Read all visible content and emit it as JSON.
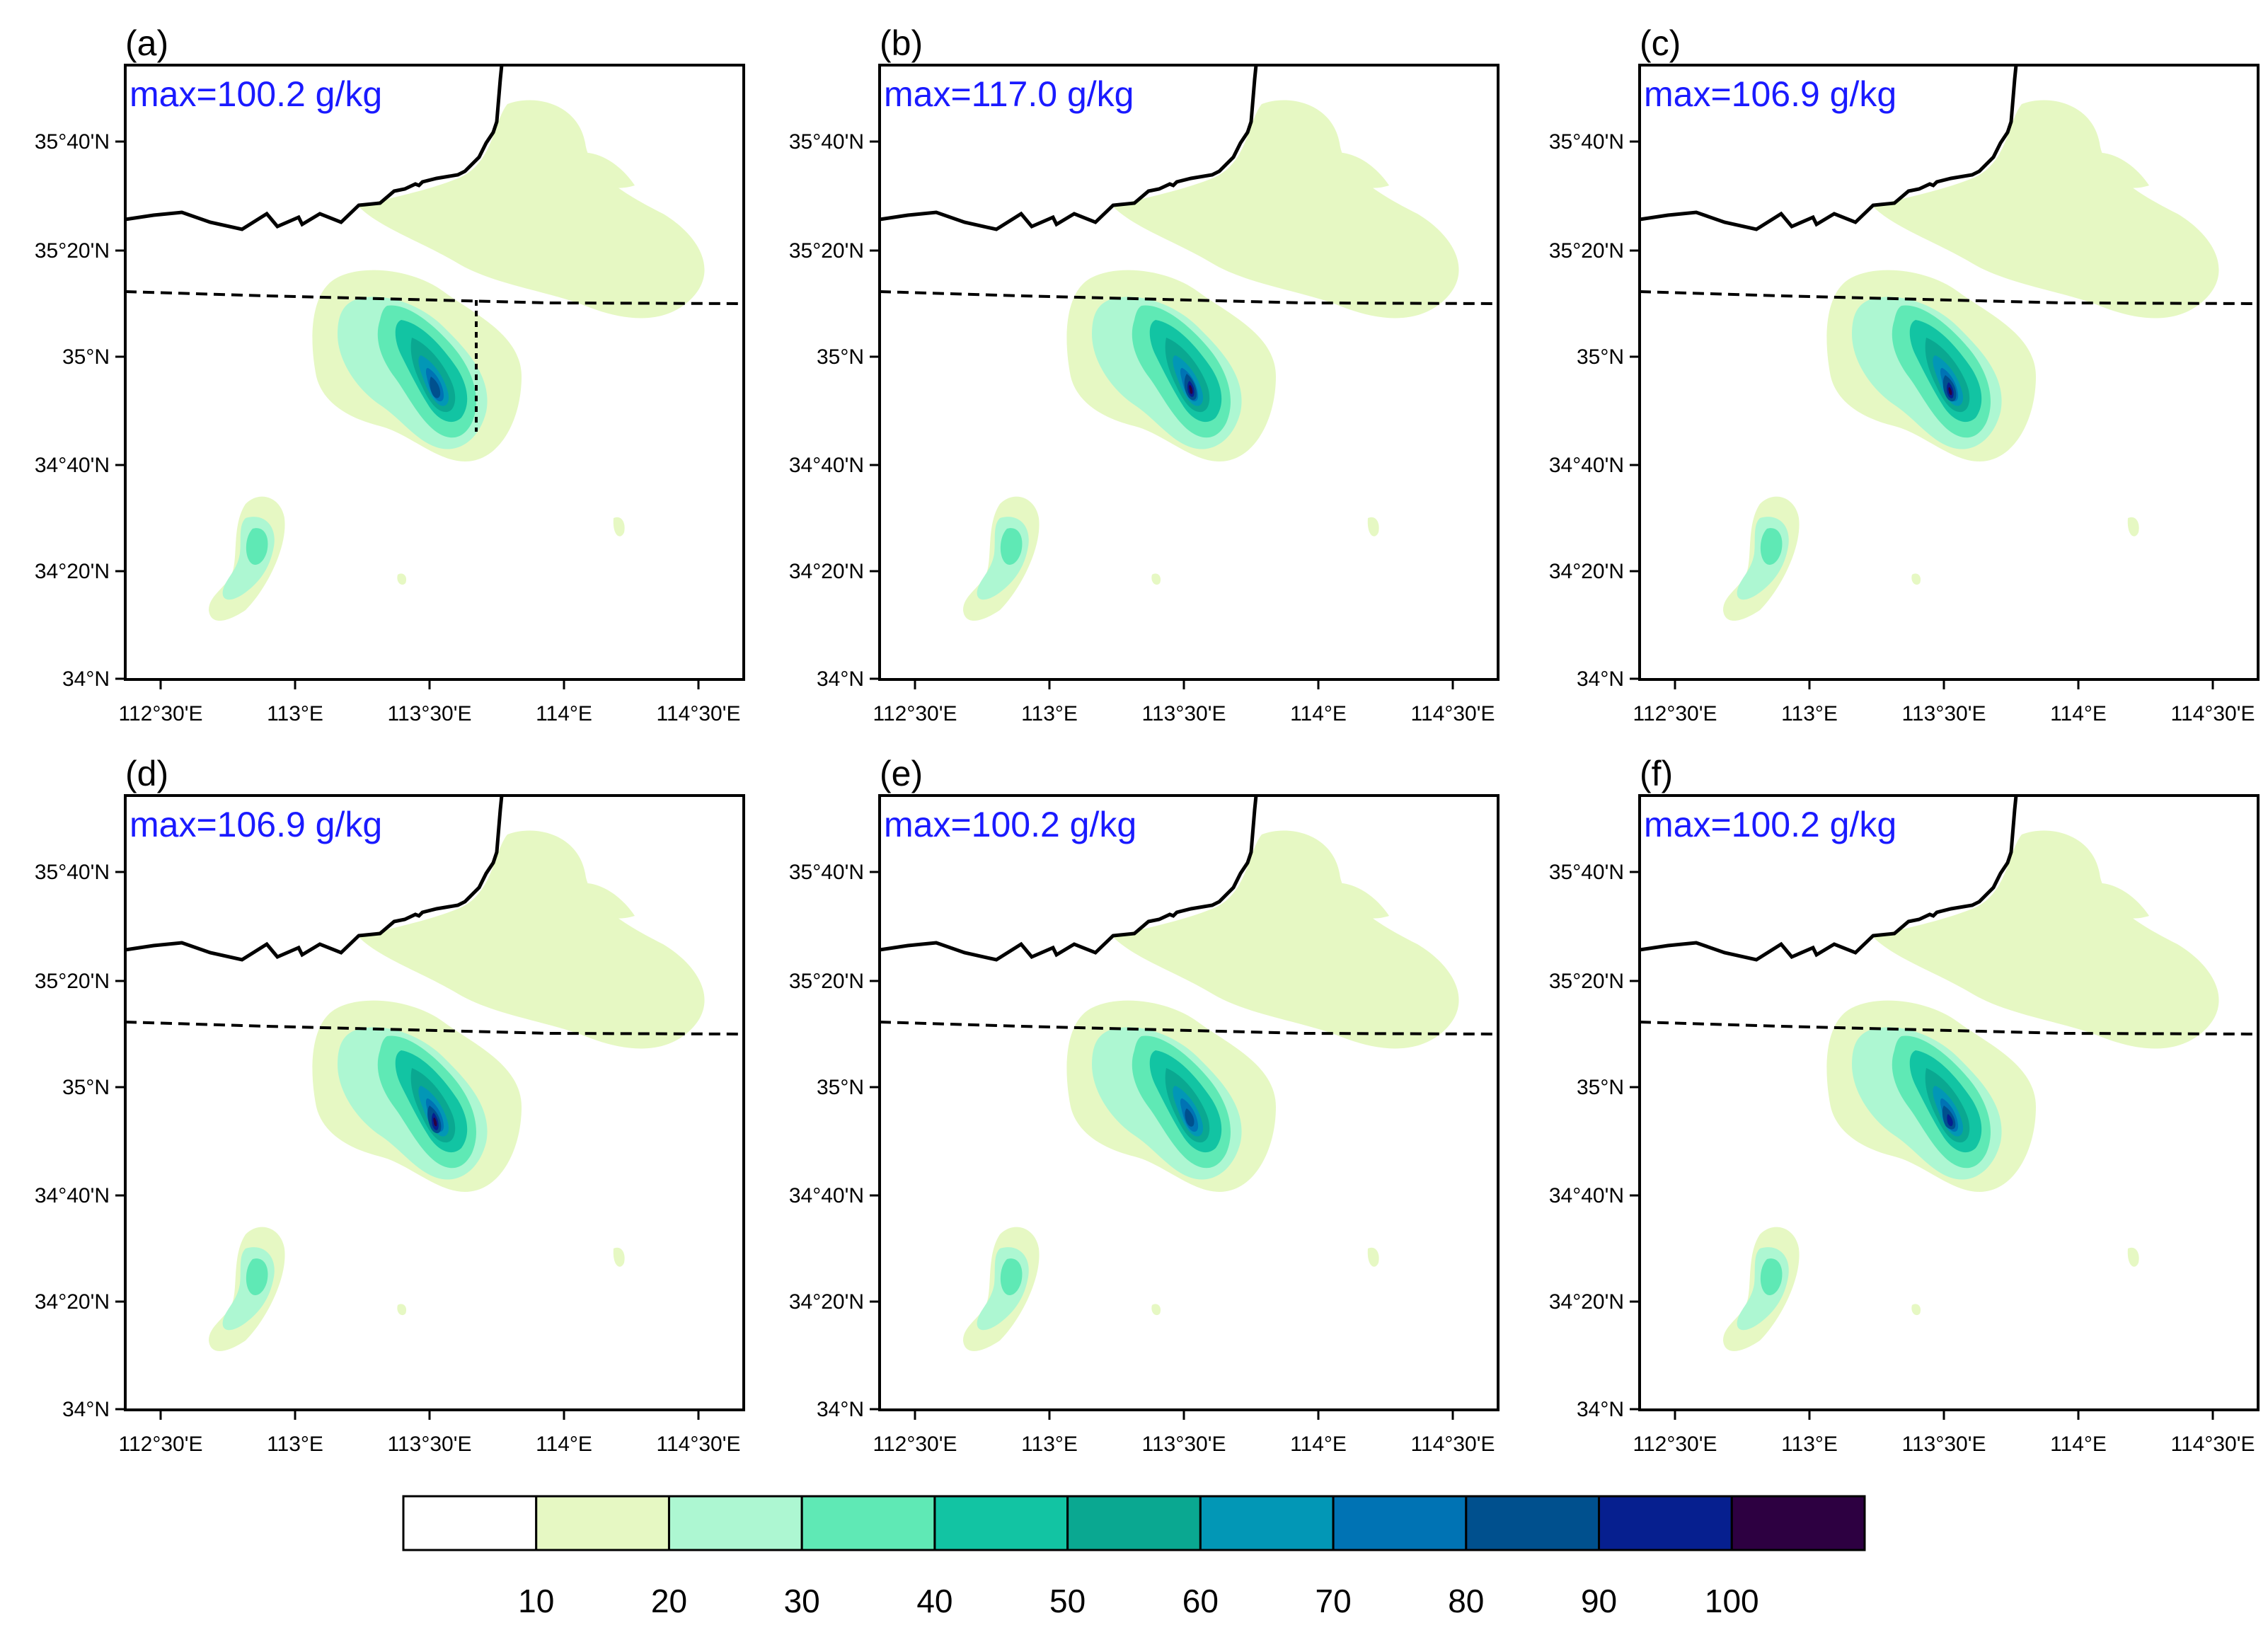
{
  "panels": [
    {
      "letter": "(a)",
      "max": "max=100.2 g/kg",
      "core": "a"
    },
    {
      "letter": "(b)",
      "max": "max=117.0 g/kg",
      "core": "b"
    },
    {
      "letter": "(c)",
      "max": "max=106.9 g/kg",
      "core": "c"
    },
    {
      "letter": "(d)",
      "max": "max=106.9 g/kg",
      "core": "d"
    },
    {
      "letter": "(e)",
      "max": "max=100.2 g/kg",
      "core": "e"
    },
    {
      "letter": "(f)",
      "max": "max=100.2 g/kg",
      "core": "f"
    }
  ],
  "lat_ticks": [
    "35°40'N",
    "35°20'N",
    "35°N",
    "34°40'N",
    "34°20'N",
    "34°N"
  ],
  "lon_ticks": [
    "112°30'E",
    "113°E",
    "113°30'E",
    "114°E",
    "114°30'E"
  ],
  "colorbar": {
    "colors": [
      "#ffffff",
      "#e6f8c3",
      "#adf7d2",
      "#5fe9b5",
      "#12c4a3",
      "#0aa891",
      "#0297b6",
      "#0073b4",
      "#00508e",
      "#061f8f",
      "#2d0041"
    ],
    "labels": [
      "10",
      "20",
      "30",
      "40",
      "50",
      "60",
      "70",
      "80",
      "90",
      "100"
    ]
  },
  "colors": {
    "boundary": "#000000",
    "max_text": "#1a1aff"
  }
}
